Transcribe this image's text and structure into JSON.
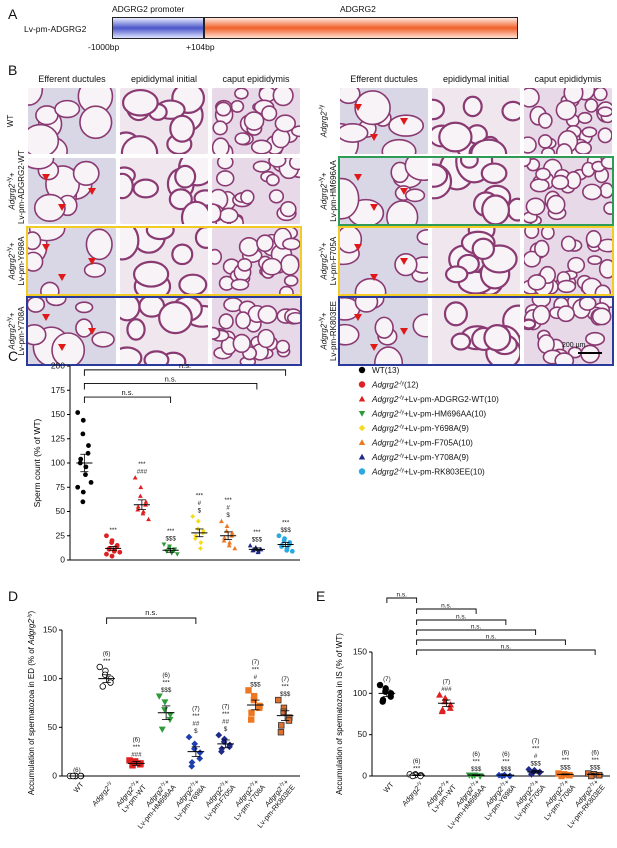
{
  "panelA": {
    "letter": "A",
    "construct": "Lv-pm-ADGRG2",
    "promoter": "ADGRG2 promoter",
    "gene": "ADGRG2",
    "left_bp": "-1000bp",
    "right_bp": "+104bp"
  },
  "panelB": {
    "letter": "B",
    "col_headers": [
      "Efferent ductules",
      "epididymal initial",
      "caput epididymis"
    ],
    "left_rows": [
      "WT",
      "Adgrg2-/y+ Lv-pm-ADGRG2-WT",
      "Adgrg2-/y+ Lv-pm-Y698A",
      "Adgrg2-/y+ Lv-pm-Y708A"
    ],
    "right_rows": [
      "Adgrg2-/y",
      "Adgrg2-/y+ Lv-pm-HM696AA",
      "Adgrg2-/y+ Lv-pm-F705A",
      "Adgrg2-/y+ Lv-pm-RK803EE"
    ],
    "scale_bar": "200 µm",
    "frame_colors": {
      "green": "#2e9b57",
      "yellow": "#f2cc25",
      "blue": "#2a3a9a"
    }
  },
  "panelC": {
    "letter": "C",
    "ylabel": "Sperm count (% of WT)",
    "ns": "n.s.",
    "legend": [
      {
        "label": "WT(13)",
        "color": "#000000",
        "shape": "circle"
      },
      {
        "label": "Adgrg2-/y(12)",
        "color": "#e02020",
        "shape": "circle"
      },
      {
        "label": "Adgrg2-/y+Lv-pm-ADGRG2-WT(10)",
        "color": "#e02020",
        "shape": "triangle-up"
      },
      {
        "label": "Adgrg2-/y+Lv-pm-HM696AA(10)",
        "color": "#2e9b3a",
        "shape": "triangle-down"
      },
      {
        "label": "Adgrg2-/y+Lv-pm-Y698A(9)",
        "color": "#f4dc1c",
        "shape": "diamond"
      },
      {
        "label": "Adgrg2-/y+Lv-pm-F705A(10)",
        "color": "#ee7722",
        "shape": "triangle-up"
      },
      {
        "label": "Adgrg2-/y+Lv-pm-Y708A(9)",
        "color": "#1f2a8a",
        "shape": "triangle-up"
      },
      {
        "label": "Adgrg2-/y+Lv-pm-RK803EE(10)",
        "color": "#2aa8e0",
        "shape": "circle"
      }
    ],
    "stars": [
      "",
      "***",
      "***\n###",
      "***\n$$$",
      "***\n#\n$",
      "***\n#\n$",
      "***\n$$$",
      "***\n$$$"
    ]
  },
  "panelD": {
    "letter": "D",
    "ylabel": "Accumulation of spermatozoa in ED (% of Adgrg2-/y)",
    "ns": "n.s.",
    "annotations": [
      "(6)",
      "(6)\n***",
      "(6)\n***\n###",
      "(6)\n***\n$$$",
      "(7)\n***\n##\n$",
      "(7)\n***\n##\n$",
      "(7)\n***\n#\n$$$",
      "(7)\n***\n$$$"
    ]
  },
  "panelE": {
    "letter": "E",
    "ylabel": "Accumulation of spermatozoa in IS (% of WT)",
    "ns": "n.s.",
    "annotations": [
      "(7)",
      "(6)\n***",
      "(7)\n###",
      "(6)\n***\n$$$",
      "(6)\n***\n$$$",
      "(7)\n***\n#\n$$$",
      "(6)\n***\n$$$",
      "(6)\n***\n$$$"
    ]
  },
  "x_categories": [
    "WT",
    "Adgrg2-/y",
    "Adgrg2-/y+ Lv-pm-WT",
    "Adgrg2-/y+ Lv-pm-HM696AA",
    "Adgrg2-/y+ Lv-pm-Y698A",
    "Adgrg2-/y+ Lv-pm-F705A",
    "Adgrg2-/y+ Lv-pm-Y708A",
    "Adgrg2-/y+ Lv-pm-RK803EE"
  ],
  "chart_data": [
    {
      "type": "scatter",
      "panel": "C",
      "ylabel": "Sperm count (% of WT)",
      "ylim": [
        0,
        200
      ],
      "yticks": [
        0,
        25,
        50,
        75,
        100,
        125,
        150,
        175,
        200
      ],
      "categories": [
        "WT(13)",
        "Adgrg2-/y(12)",
        "Adgrg2-/y+Lv-pm-ADGRG2-WT(10)",
        "Adgrg2-/y+Lv-pm-HM696AA(10)",
        "Adgrg2-/y+Lv-pm-Y698A(9)",
        "Adgrg2-/y+Lv-pm-F705A(10)",
        "Adgrg2-/y+Lv-pm-Y708A(9)",
        "Adgrg2-/y+Lv-pm-RK803EE(10)"
      ],
      "means": [
        100,
        12,
        57,
        10,
        28,
        25,
        11,
        16
      ],
      "sem": [
        9,
        2,
        5,
        2,
        4,
        4,
        1.5,
        2
      ],
      "points": [
        [
          152,
          144,
          130,
          118,
          110,
          104,
          100,
          96,
          88,
          80,
          75,
          70,
          60
        ],
        [
          25,
          20,
          18,
          15,
          14,
          12,
          11,
          10,
          9,
          8,
          6,
          4
        ],
        [
          85,
          75,
          66,
          60,
          57,
          55,
          52,
          50,
          48,
          42
        ],
        [
          16,
          14,
          12,
          11,
          10,
          9,
          9,
          8,
          7,
          6
        ],
        [
          45,
          40,
          32,
          30,
          28,
          25,
          22,
          18,
          12
        ],
        [
          40,
          35,
          30,
          28,
          25,
          23,
          20,
          18,
          15,
          12
        ],
        [
          15,
          13,
          12,
          11,
          11,
          10,
          10,
          9,
          8
        ],
        [
          25,
          22,
          20,
          18,
          16,
          15,
          14,
          12,
          10,
          9
        ]
      ],
      "significance_pairs": [
        [
          "WT",
          "HM696AA",
          "n.s."
        ],
        [
          "WT",
          "Y708A",
          "n.s."
        ],
        [
          "WT",
          "RK803EE",
          "n.s."
        ]
      ]
    },
    {
      "type": "scatter",
      "panel": "D",
      "ylabel": "Accumulation of spermatozoa in ED (% of Adgrg2-/y)",
      "ylim": [
        0,
        150
      ],
      "yticks": [
        0,
        50,
        100,
        150
      ],
      "categories": [
        "WT",
        "Adgrg2-/y",
        "Adgrg2-/y+ Lv-pm-WT",
        "Adgrg2-/y+ Lv-pm-HM696AA",
        "Adgrg2-/y+ Lv-pm-Y698A",
        "Adgrg2-/y+ Lv-pm-F705A",
        "Adgrg2-/y+ Lv-pm-Y708A",
        "Adgrg2-/y+ Lv-pm-RK803EE"
      ],
      "means": [
        0,
        100,
        13,
        65,
        25,
        33,
        73,
        62
      ],
      "sem": [
        0,
        4,
        2,
        7,
        5,
        4,
        5,
        5
      ],
      "points": [
        [
          0,
          0,
          0,
          0,
          0,
          0
        ],
        [
          112,
          108,
          104,
          100,
          96,
          92
        ],
        [
          16,
          15,
          14,
          13,
          12,
          11
        ],
        [
          82,
          76,
          68,
          63,
          58,
          48
        ],
        [
          40,
          33,
          28,
          24,
          18,
          14,
          10
        ],
        [
          42,
          38,
          35,
          32,
          30,
          28,
          25
        ],
        [
          88,
          82,
          78,
          72,
          70,
          65,
          58
        ],
        [
          78,
          70,
          66,
          60,
          57,
          52,
          45
        ]
      ],
      "significance_pairs": [
        [
          "Adgrg2-/y",
          "Y698A",
          "n.s."
        ]
      ]
    },
    {
      "type": "scatter",
      "panel": "E",
      "ylabel": "Accumulation of spermatozoa in IS (% of WT)",
      "ylim": [
        0,
        150
      ],
      "yticks": [
        0,
        50,
        100,
        150
      ],
      "categories": [
        "WT",
        "Adgrg2-/y",
        "Adgrg2-/y+ Lv-pm-WT",
        "Adgrg2-/y+ Lv-pm-HM696AA",
        "Adgrg2-/y+ Lv-pm-Y698A",
        "Adgrg2-/y+ Lv-pm-F705A",
        "Adgrg2-/y+ Lv-pm-Y708A",
        "Adgrg2-/y+ Lv-pm-RK803EE"
      ],
      "means": [
        100,
        1,
        88,
        1,
        1,
        5,
        2,
        2
      ],
      "sem": [
        4,
        0.5,
        4,
        0.5,
        0.5,
        1.5,
        0.5,
        0.5
      ],
      "points": [
        [
          110,
          106,
          102,
          100,
          96,
          92,
          90
        ],
        [
          2,
          2,
          1,
          1,
          0,
          0
        ],
        [
          98,
          94,
          90,
          86,
          82,
          80,
          78
        ],
        [
          1,
          1,
          1,
          0,
          0,
          0
        ],
        [
          1,
          1,
          1,
          0,
          0,
          0
        ],
        [
          8,
          7,
          6,
          5,
          4,
          3,
          2
        ],
        [
          3,
          2,
          2,
          1,
          1,
          0
        ],
        [
          3,
          2,
          2,
          1,
          1,
          0
        ]
      ],
      "significance_pairs": [
        [
          "WT",
          "Adgrg2-/y",
          "n.s."
        ],
        [
          "Adgrg2-/y",
          "HM696AA",
          "n.s."
        ],
        [
          "Adgrg2-/y",
          "Y698A",
          "n.s."
        ],
        [
          "Adgrg2-/y",
          "F705A",
          "n.s."
        ],
        [
          "Adgrg2-/y",
          "Y708A",
          "n.s."
        ],
        [
          "Adgrg2-/y",
          "RK803EE",
          "n.s."
        ]
      ]
    }
  ]
}
